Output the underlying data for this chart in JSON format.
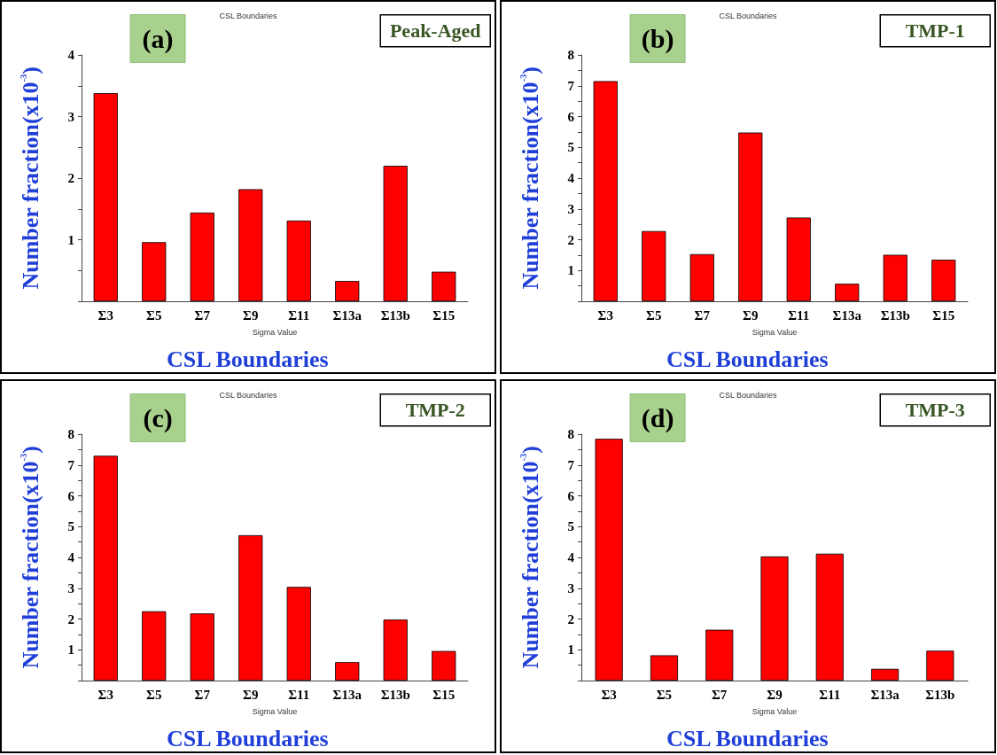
{
  "chart_data": [
    {
      "type": "bar",
      "title": "CSL Boundaries",
      "xlabel": "Sigma Value",
      "ylabel": "Number fraction(x10$^{-3}$)",
      "annotations": [
        "(a)",
        "Peak-Aged",
        "CSL Boundaries"
      ],
      "categories": [
        "Σ3",
        "Σ5",
        "Σ7",
        "Σ9",
        "Σ11",
        "Σ13a",
        "Σ13b",
        "Σ15"
      ],
      "values": [
        3.38,
        0.96,
        1.44,
        1.82,
        1.31,
        0.33,
        2.2,
        0.48
      ],
      "color": "#ff0000",
      "ylim": [
        0,
        4
      ],
      "yticks": [
        {
          "value": 0,
          "label": null
        },
        {
          "value": 0.5,
          "label": null
        },
        1,
        {
          "value": 1.5,
          "label": null
        },
        2,
        {
          "value": 2.5,
          "label": null
        },
        3,
        {
          "value": 3.5,
          "label": null
        },
        4
      ],
      "grid": false
    },
    {
      "type": "bar",
      "title": "CSL Boundaries",
      "xlabel": "Sigma Value",
      "ylabel": "Number fraction(x10$^{-3}$)",
      "annotations": [
        "(b)",
        "TMP-1",
        "CSL Boundaries"
      ],
      "categories": [
        "Σ3",
        "Σ5",
        "Σ7",
        "Σ9",
        "Σ11",
        "Σ13a",
        "Σ13b",
        "Σ15"
      ],
      "values": [
        7.15,
        2.28,
        1.53,
        5.48,
        2.72,
        0.57,
        1.51,
        1.35
      ],
      "color": "#ff0000",
      "ylim": [
        0,
        8
      ],
      "yticks": [
        {
          "value": 0,
          "label": null
        },
        {
          "value": 0.5,
          "label": null
        },
        1,
        {
          "value": 1.5,
          "label": null
        },
        2,
        {
          "value": 2.5,
          "label": null
        },
        3,
        {
          "value": 3.5,
          "label": null
        },
        4,
        {
          "value": 4.5,
          "label": null
        },
        5,
        {
          "value": 5.5,
          "label": null
        },
        6,
        {
          "value": 6.5,
          "label": null
        },
        7,
        {
          "value": 7.5,
          "label": null
        },
        8
      ],
      "grid": false
    },
    {
      "type": "bar",
      "title": "CSL Boundaries",
      "xlabel": "Sigma Value",
      "ylabel": "Number fraction(x10$^{-3}$)",
      "annotations": [
        "(c)",
        "TMP-2",
        "CSL Boundaries"
      ],
      "categories": [
        "Σ3",
        "Σ5",
        "Σ7",
        "Σ9",
        "Σ11",
        "Σ13a",
        "Σ13b",
        "Σ15"
      ],
      "values": [
        7.3,
        2.25,
        2.18,
        4.72,
        3.04,
        0.6,
        1.98,
        0.96
      ],
      "color": "#ff0000",
      "ylim": [
        0,
        8
      ],
      "yticks": [
        {
          "value": 0,
          "label": null
        },
        {
          "value": 0.5,
          "label": null
        },
        1,
        {
          "value": 1.5,
          "label": null
        },
        2,
        {
          "value": 2.5,
          "label": null
        },
        3,
        {
          "value": 3.5,
          "label": null
        },
        4,
        {
          "value": 4.5,
          "label": null
        },
        5,
        {
          "value": 5.5,
          "label": null
        },
        6,
        {
          "value": 6.5,
          "label": null
        },
        7,
        {
          "value": 7.5,
          "label": null
        },
        8
      ],
      "grid": false
    },
    {
      "type": "bar",
      "title": "CSL Boundaries",
      "xlabel": "Sigma Value",
      "ylabel": "Number fraction(x10$^{-3}$)",
      "annotations": [
        "(d)",
        "TMP-3",
        "CSL Boundaries"
      ],
      "categories": [
        "Σ3",
        "Σ5",
        "Σ7",
        "Σ9",
        "Σ11",
        "Σ13a",
        "Σ13b"
      ],
      "values": [
        7.85,
        0.82,
        1.65,
        4.03,
        4.12,
        0.38,
        0.97
      ],
      "color": "#ff0000",
      "ylim": [
        0,
        8
      ],
      "yticks": [
        {
          "value": 0,
          "label": null
        },
        {
          "value": 0.5,
          "label": null
        },
        1,
        {
          "value": 1.5,
          "label": null
        },
        2,
        {
          "value": 2.5,
          "label": null
        },
        3,
        {
          "value": 3.5,
          "label": null
        },
        4,
        {
          "value": 4.5,
          "label": null
        },
        5,
        {
          "value": 5.5,
          "label": null
        },
        6,
        {
          "value": 6.5,
          "label": null
        },
        7,
        {
          "value": 7.5,
          "label": null
        },
        8
      ],
      "grid": false
    }
  ]
}
